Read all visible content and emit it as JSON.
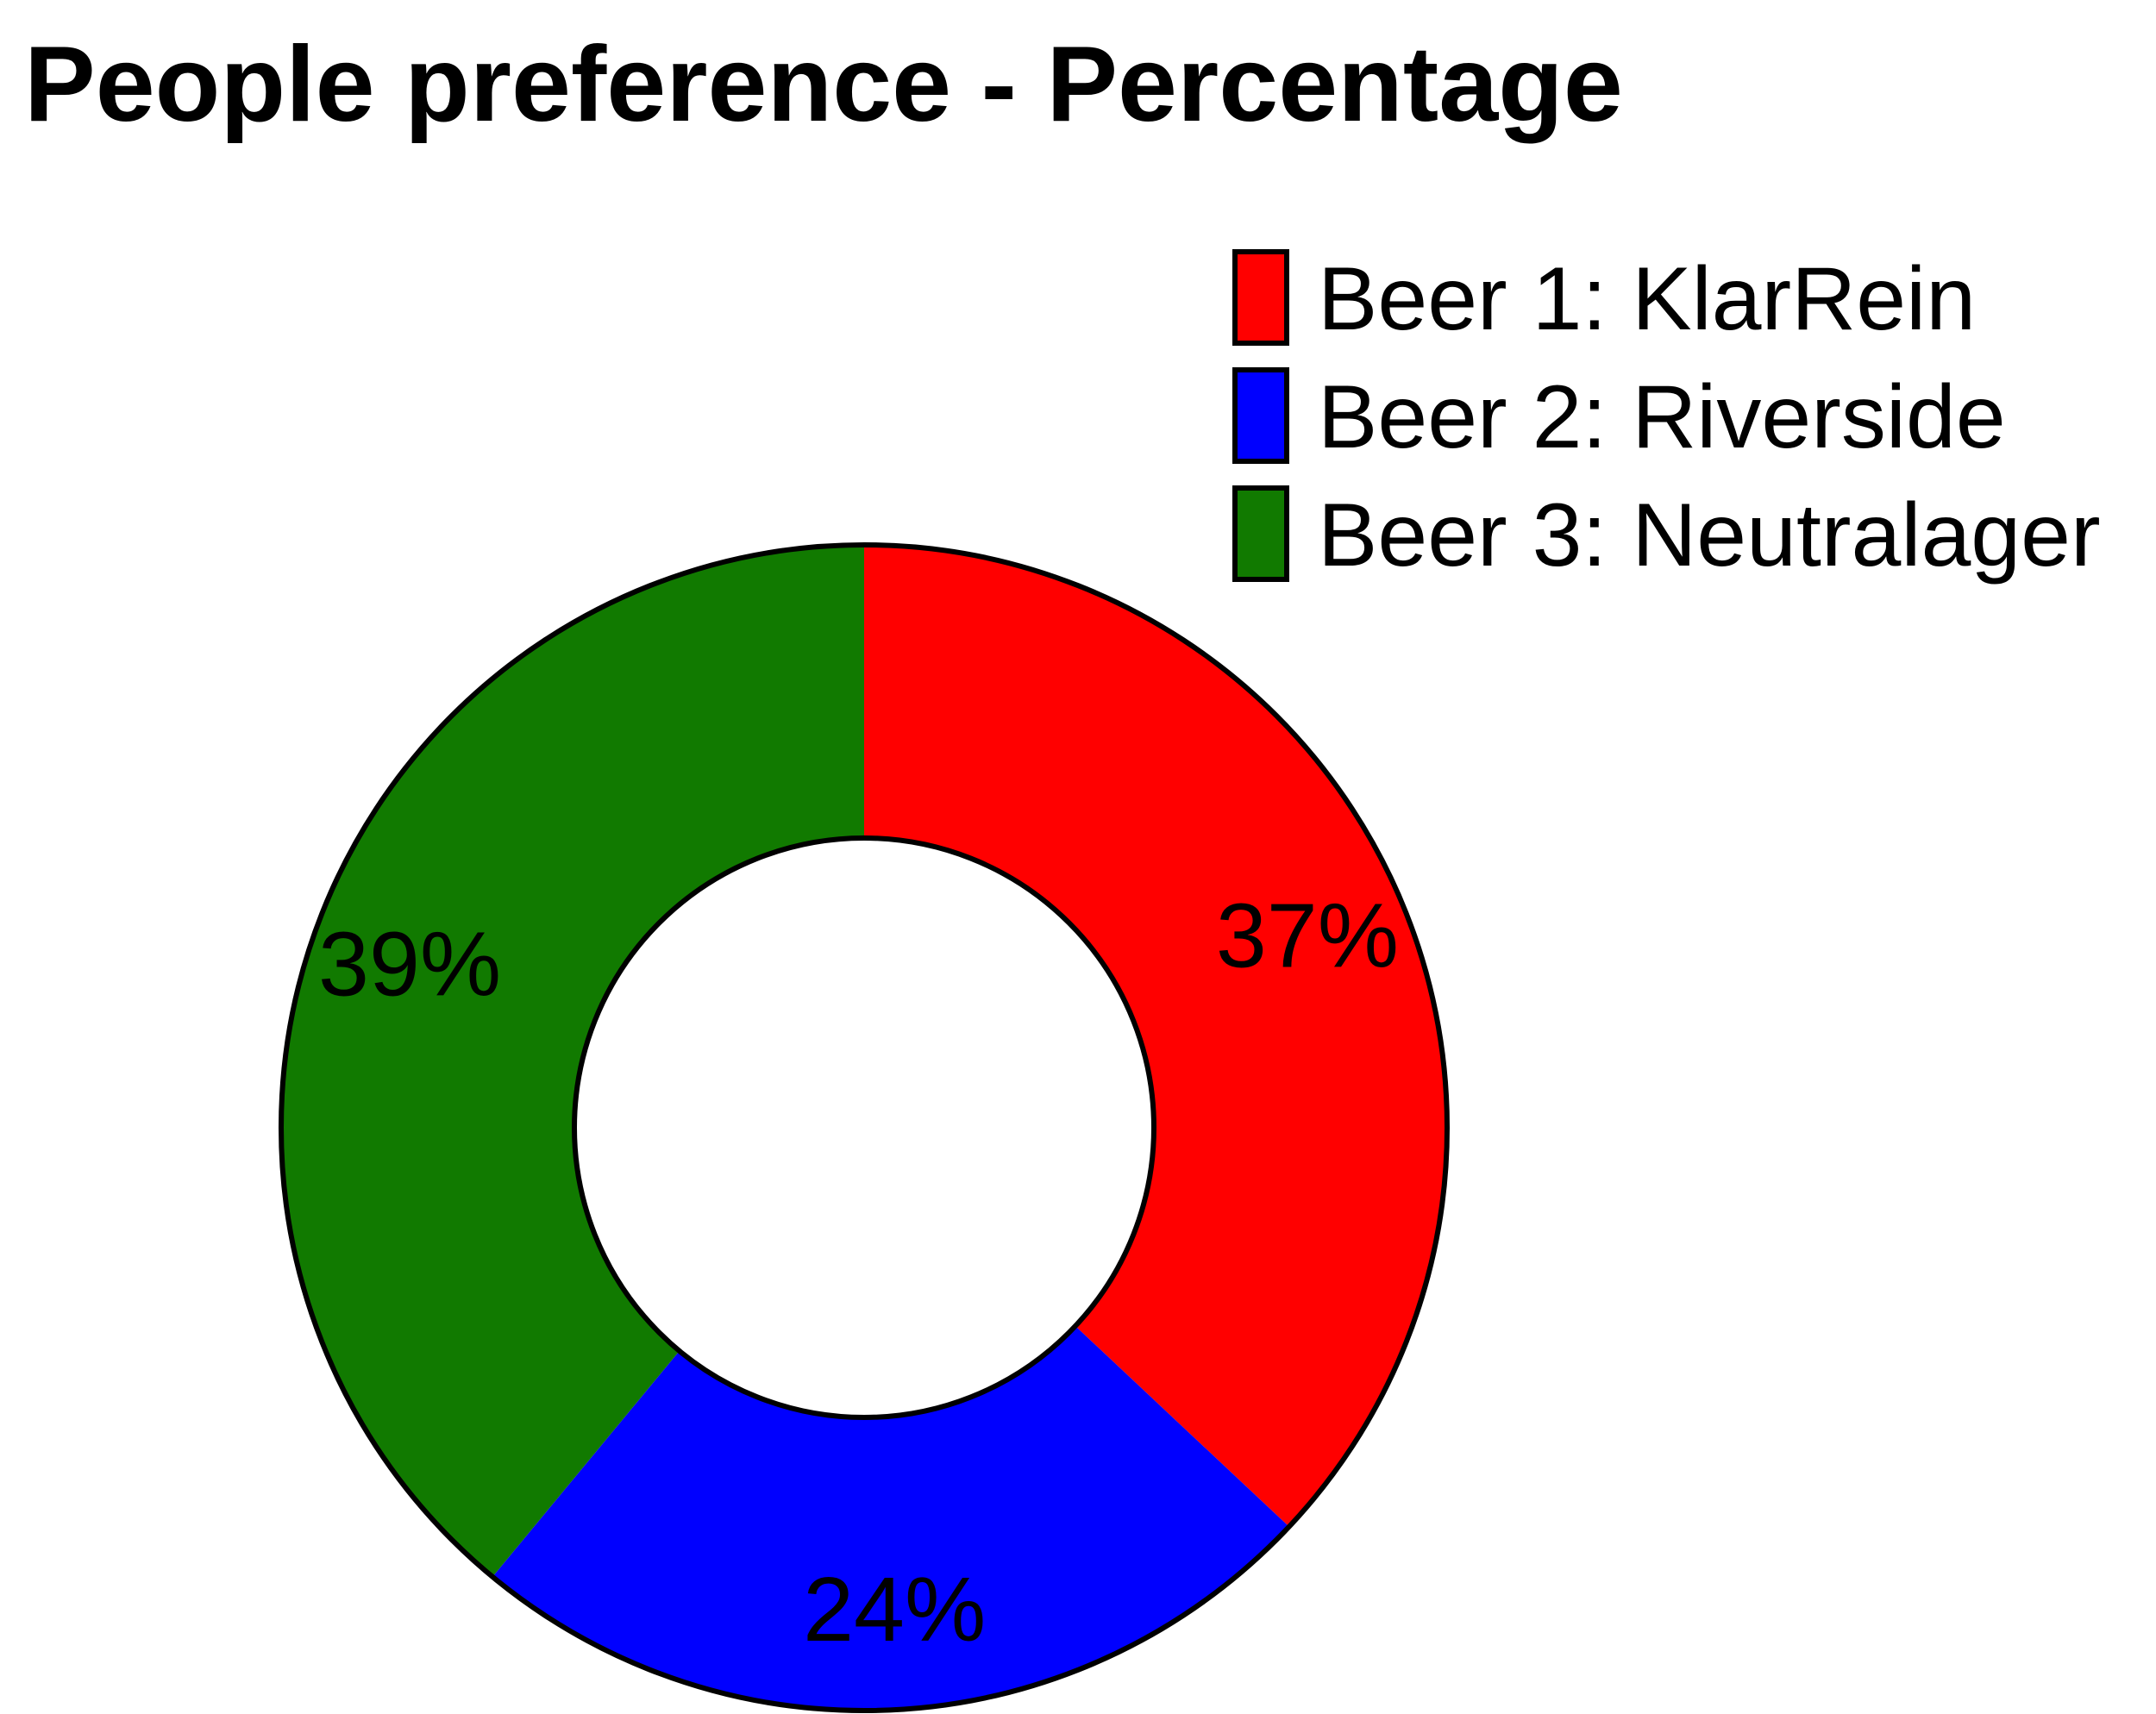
{
  "chart_data": {
    "type": "pie",
    "title": "People preference - Percentage",
    "categories": [
      "Beer 1: KlarRein",
      "Beer 2: Riverside",
      "Beer 3: Neutralager"
    ],
    "values": [
      37,
      24,
      39
    ],
    "value_labels": [
      "37%",
      "24%",
      "39%"
    ],
    "colors": [
      "#ff0000",
      "#0000ff",
      "#117a00"
    ],
    "donut": true,
    "legend_position": "top-right"
  }
}
